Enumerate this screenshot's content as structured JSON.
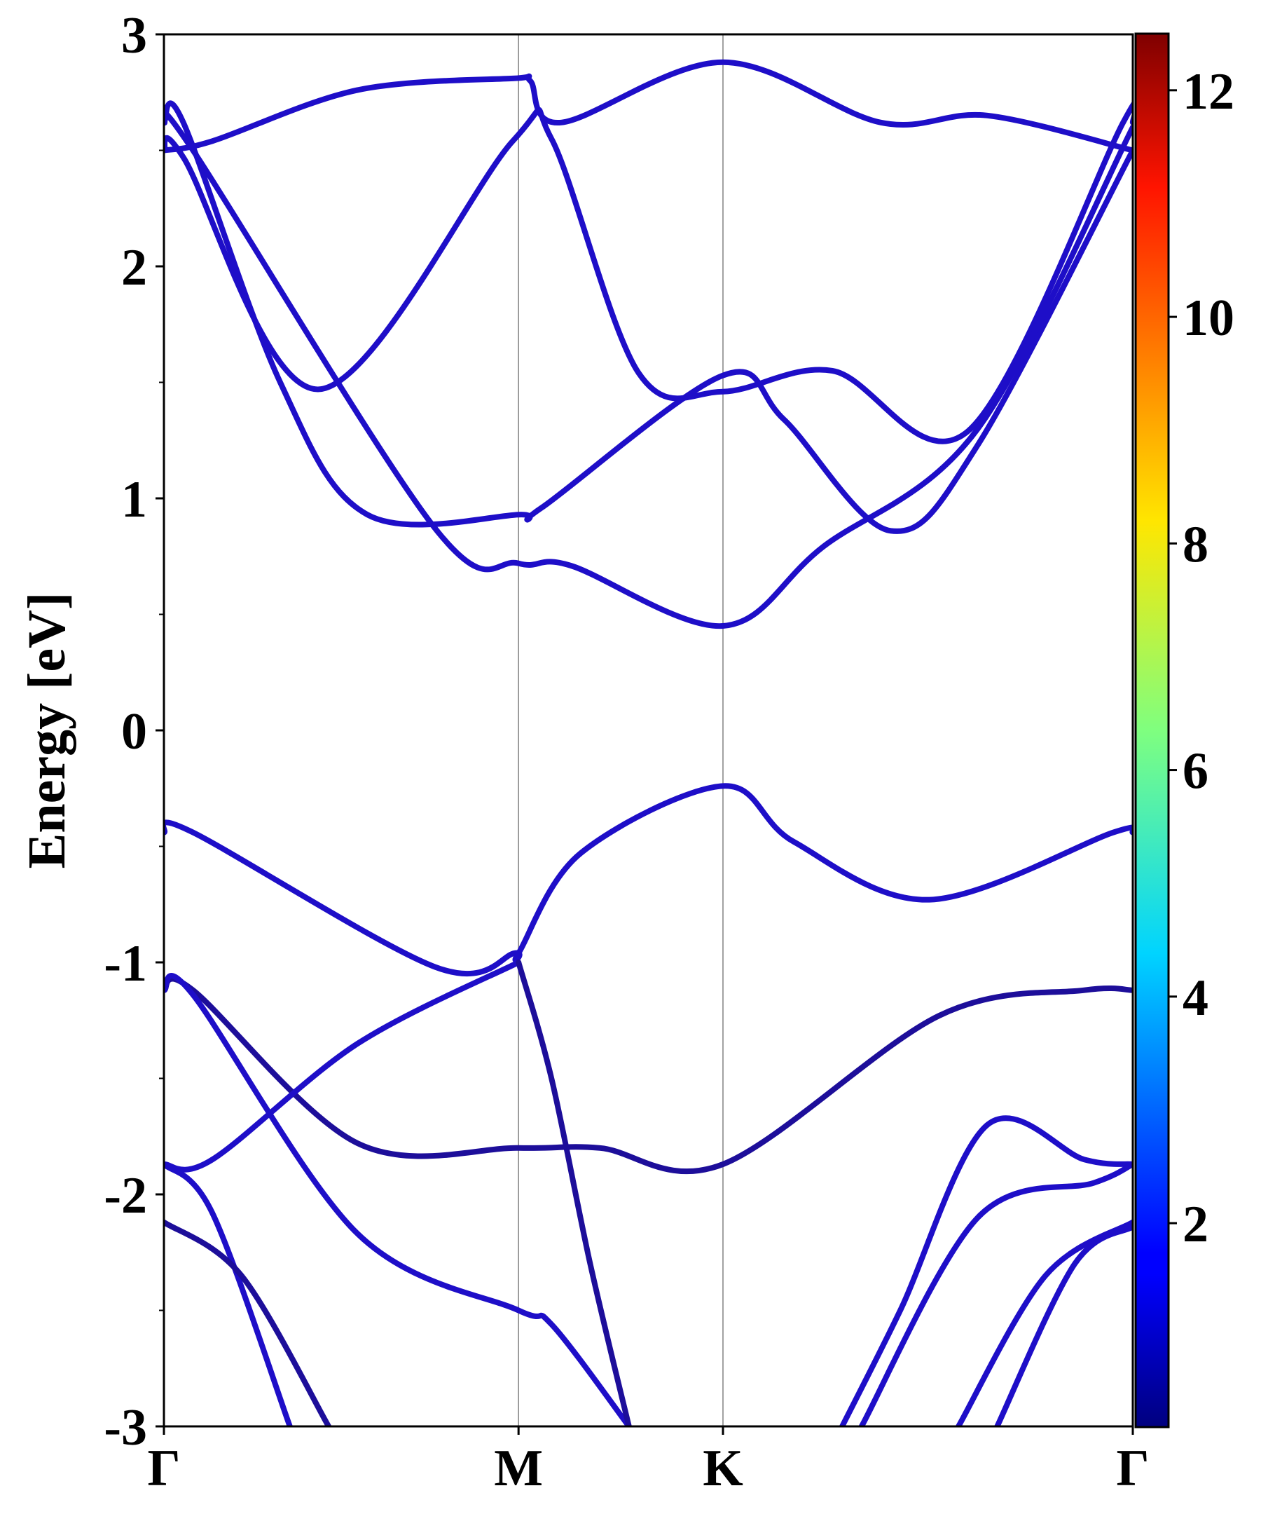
{
  "chart_data": {
    "type": "line",
    "title": "",
    "ylabel": "Energy [eV]",
    "xlabel": "",
    "ylim": [
      -3,
      3
    ],
    "yticks": [
      -3,
      -2,
      -1,
      0,
      1,
      2,
      3
    ],
    "y_minor_step": 0.5,
    "kpath": [
      {
        "label": "Γ",
        "x": 0
      },
      {
        "label": "M",
        "x": 0.366
      },
      {
        "label": "K",
        "x": 0.577
      },
      {
        "label": "Γ",
        "x": 1
      }
    ],
    "colorbar": {
      "range": [
        0.2,
        12.5
      ],
      "ticks": [
        2,
        4,
        6,
        8,
        10,
        12
      ],
      "colormap": "jet"
    },
    "bands": [
      {
        "name": "cb-top-a",
        "color": "#1e0ec8",
        "x": [
          0,
          0.05,
          0.2,
          0.36,
          0.378,
          0.41,
          0.577,
          0.74,
          0.85,
          1
        ],
        "y": [
          2.5,
          2.54,
          2.76,
          2.81,
          2.8,
          2.62,
          2.88,
          2.62,
          2.65,
          2.5
        ]
      },
      {
        "name": "cb-top-b",
        "color": "#1e0ec8",
        "x": [
          0,
          0.02,
          0.16,
          0.36,
          0.4,
          0.49,
          0.577,
          0.69,
          0.83,
          0.99,
          1
        ],
        "y": [
          2.5,
          2.47,
          1.47,
          2.54,
          2.55,
          1.54,
          1.46,
          1.55,
          1.29,
          2.62,
          2.62
        ]
      },
      {
        "name": "cb-mid-a",
        "color": "#1e0ec8",
        "x": [
          0,
          0.02,
          0.12,
          0.21,
          0.366,
          0.39,
          0.577,
          0.64,
          0.75,
          0.84,
          1
        ],
        "y": [
          2.62,
          2.62,
          1.5,
          0.93,
          0.93,
          0.96,
          1.53,
          1.34,
          0.86,
          1.23,
          2.5
        ]
      },
      {
        "name": "cb-low",
        "color": "#1e0ec8",
        "x": [
          0,
          0.03,
          0.28,
          0.366,
          0.42,
          0.577,
          0.68,
          0.84,
          1
        ],
        "y": [
          2.62,
          2.5,
          0.87,
          0.72,
          0.71,
          0.45,
          0.79,
          1.3,
          2.6
        ]
      },
      {
        "name": "vb-top",
        "color": "#1e0ec8",
        "x": [
          0,
          0.03,
          0.28,
          0.362,
          0.366,
          0.43,
          0.577,
          0.65,
          0.79,
          0.98,
          1
        ],
        "y": [
          -0.44,
          -0.44,
          -1.02,
          -0.96,
          -0.96,
          -0.53,
          -0.24,
          -0.48,
          -0.73,
          -0.44,
          -0.44
        ]
      },
      {
        "name": "vb-2a",
        "color": "#1d0e9a",
        "x": [
          0,
          0.03,
          0.2,
          0.366,
          0.45,
          0.577,
          0.8,
          0.95,
          1
        ],
        "y": [
          -1.12,
          -1.12,
          -1.78,
          -1.8,
          -1.8,
          -1.87,
          -1.23,
          -1.12,
          -1.12
        ]
      },
      {
        "name": "vb-2b",
        "color": "#1e0ec8",
        "x": [
          0,
          0.03,
          0.2,
          0.366,
          0.4,
          0.48
        ],
        "y": [
          -1.12,
          -1.14,
          -2.17,
          -2.5,
          -2.56,
          -3
        ]
      },
      {
        "name": "vb-3a",
        "color": "#1e0ec8",
        "x": [
          0,
          0.05,
          0.2,
          0.366
        ],
        "y": [
          -1.87,
          -1.85,
          -1.35,
          -1.0
        ]
      },
      {
        "name": "vb-3b",
        "color": "#1d0e9a",
        "x": [
          0.366,
          0.4,
          0.44,
          0.48
        ],
        "y": [
          -1.0,
          -1.5,
          -2.3,
          -3
        ]
      },
      {
        "name": "vb-4a",
        "color": "#1e0ec8",
        "x": [
          0.7,
          0.76,
          0.85,
          0.95,
          1
        ],
        "y": [
          -3,
          -2.5,
          -1.7,
          -1.85,
          -1.87
        ]
      },
      {
        "name": "vb-4b",
        "color": "#1e0ec8",
        "x": [
          0.72,
          0.84,
          0.96,
          1
        ],
        "y": [
          -3,
          -2.1,
          -1.95,
          -1.87
        ]
      },
      {
        "name": "vb-5a",
        "color": "#1e0ec8",
        "x": [
          0,
          0.05,
          0.13
        ],
        "y": [
          -1.87,
          -2.08,
          -3
        ]
      },
      {
        "name": "vb-5b",
        "color": "#1d0e9a",
        "x": [
          0,
          0.08,
          0.17
        ],
        "y": [
          -2.12,
          -2.35,
          -3
        ]
      },
      {
        "name": "vb-6a",
        "color": "#1e0ec8",
        "x": [
          0.82,
          0.91,
          1
        ],
        "y": [
          -3,
          -2.35,
          -2.12
        ]
      },
      {
        "name": "vb-6b",
        "color": "#1e0ec8",
        "x": [
          0.86,
          0.94,
          1
        ],
        "y": [
          -3,
          -2.3,
          -2.14
        ]
      }
    ]
  }
}
